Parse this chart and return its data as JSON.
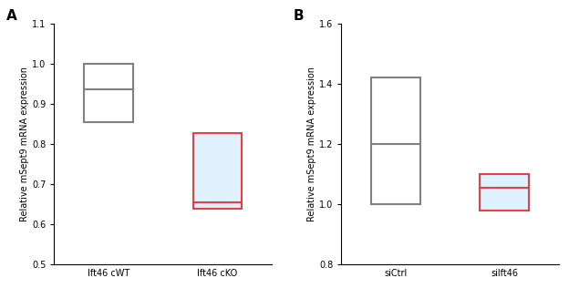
{
  "panel_A": {
    "label": "A",
    "ylabel": "Relative mSept9 mRNA expression",
    "ylim": [
      0.5,
      1.1
    ],
    "yticks": [
      0.5,
      0.6,
      0.7,
      0.8,
      0.9,
      1.0,
      1.1
    ],
    "categories": [
      "Ift46 cWT",
      "Ift46 cKO"
    ],
    "boxes": [
      {
        "q1": 0.855,
        "median": 0.935,
        "q3": 1.0,
        "color": "#808080",
        "fill": "#ffffff"
      },
      {
        "q1": 0.638,
        "median": 0.655,
        "q3": 0.828,
        "color": "#e84040",
        "fill": "#dff0ff"
      }
    ]
  },
  "panel_B": {
    "label": "B",
    "ylabel": "Relative mSept9 mRNA expression",
    "ylim": [
      0.8,
      1.6
    ],
    "yticks": [
      0.8,
      1.0,
      1.2,
      1.4,
      1.6
    ],
    "categories": [
      "siCtrl",
      "silft46"
    ],
    "boxes": [
      {
        "q1": 1.0,
        "median": 1.2,
        "q3": 1.42,
        "color": "#808080",
        "fill": "#ffffff"
      },
      {
        "q1": 0.98,
        "median": 1.055,
        "q3": 1.1,
        "color": "#e84040",
        "fill": "#dff0ff"
      }
    ]
  },
  "box_width": 0.45,
  "linewidth": 1.5,
  "label_fontsize": 7,
  "tick_fontsize": 7,
  "panel_label_fontsize": 11,
  "background_color": "#ffffff"
}
